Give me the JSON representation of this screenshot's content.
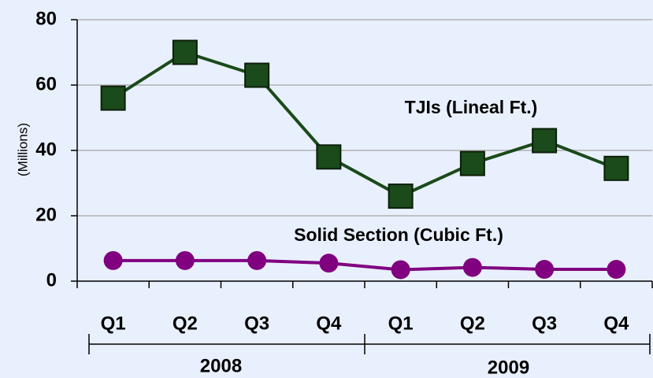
{
  "chart_data": {
    "type": "line",
    "y_label": "(Millions)",
    "categories": [
      "Q1",
      "Q2",
      "Q3",
      "Q4",
      "Q1",
      "Q2",
      "Q3",
      "Q4"
    ],
    "x_groups": [
      "2008",
      "2009"
    ],
    "series": [
      {
        "name": "TJIs (Lineal Ft.)",
        "color": "#1b4a1b",
        "marker": "square",
        "values": [
          56,
          70,
          63,
          38,
          26,
          36,
          43,
          34.5
        ]
      },
      {
        "name": "Solid Section (Cubic Ft.)",
        "color": "#800080",
        "marker": "circle",
        "values": [
          6.3,
          6.3,
          6.3,
          5.5,
          3.5,
          4.2,
          3.6,
          3.6
        ]
      }
    ],
    "ylim": [
      0,
      80
    ],
    "yticks": [
      0,
      20,
      40,
      60,
      80
    ],
    "grid": true
  }
}
